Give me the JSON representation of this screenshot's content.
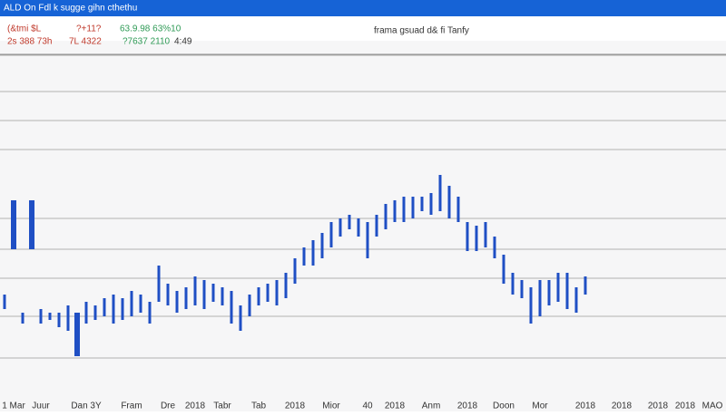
{
  "header": {
    "title": "ALD On Fdl k  sugge gihn  cthethu",
    "row1": [
      "(&tmi $L",
      "?+11?",
      "63.9.98 63%10"
    ],
    "row1_right": "frama gsuad d& fi Tanfy",
    "row2": [
      "2s 388 73h",
      "7L 4322",
      "?7637 2110",
      "4:49"
    ]
  },
  "chart_data": {
    "type": "range_bar",
    "color": "#1f4fc4",
    "grid": true,
    "categories": [
      null,
      "1 Mar",
      null,
      null,
      "Juur",
      null,
      null,
      null,
      null,
      "Dan 3Y",
      null,
      null,
      null,
      null,
      "Fram",
      null,
      null,
      null,
      "Dre",
      null,
      null,
      "2018",
      null,
      null,
      "Tabr",
      null,
      null,
      null,
      "Tab",
      null,
      null,
      null,
      "2018",
      null,
      null,
      null,
      "Mior",
      null,
      null,
      null,
      "40",
      null,
      null,
      "2018",
      null,
      null,
      null,
      "Anm",
      null,
      null,
      null,
      "2018",
      null,
      null,
      null,
      "Doon",
      null,
      null,
      null,
      "Mor",
      null,
      null,
      null,
      null,
      "2018",
      null,
      null,
      null,
      "2018",
      null,
      null,
      null,
      "2018",
      null,
      null,
      "2018",
      null,
      null,
      "MAO"
    ],
    "low": [
      26,
      42.5,
      22,
      42.5,
      22,
      23,
      21,
      20,
      13,
      22,
      23,
      24,
      22,
      23,
      24,
      25,
      22,
      28,
      27,
      25,
      26,
      27,
      26,
      28,
      27,
      22,
      20,
      24,
      27,
      28,
      27,
      29,
      33,
      38,
      38,
      40,
      43,
      46,
      48,
      46,
      40,
      46,
      48,
      50,
      50,
      51,
      53,
      52,
      53,
      51,
      50,
      42,
      42,
      43,
      40,
      33,
      30,
      29,
      22,
      24,
      27,
      28,
      26,
      25,
      30,
      null,
      null,
      null,
      null,
      null,
      null,
      null,
      null,
      null,
      null,
      null,
      null,
      null,
      null
    ],
    "high": [
      30,
      56,
      25,
      56,
      26,
      25,
      25,
      27,
      25,
      28,
      27,
      29,
      30,
      29,
      31,
      30,
      28,
      38,
      33,
      31,
      32,
      35,
      34,
      33,
      32,
      31,
      27,
      30,
      32,
      33,
      34,
      36,
      40,
      43,
      45,
      47,
      50,
      51,
      52,
      51,
      50,
      52,
      55,
      56,
      57,
      57,
      57,
      58,
      63,
      60,
      57,
      50,
      49,
      50,
      46,
      41,
      36,
      34,
      32,
      34,
      34,
      36,
      36,
      32,
      35,
      null,
      null,
      null,
      null,
      null,
      null,
      null,
      null,
      null,
      null,
      null,
      null,
      null,
      null
    ],
    "ylim": [
      0,
      100
    ],
    "yticks": [
      12.5,
      24,
      34.5,
      42.5,
      51,
      70,
      78,
      86,
      96
    ]
  }
}
